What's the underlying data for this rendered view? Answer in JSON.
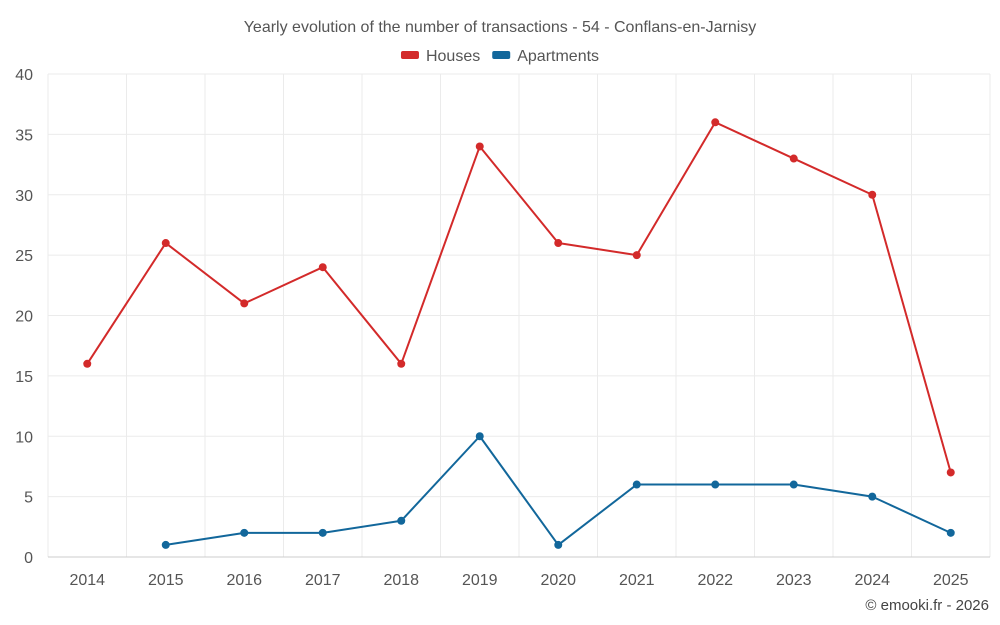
{
  "chart_data": {
    "type": "line",
    "title": "Yearly evolution of the number of transactions - 54 - Conflans-en-Jarnisy",
    "categories": [
      "2014",
      "2015",
      "2016",
      "2017",
      "2018",
      "2019",
      "2020",
      "2021",
      "2022",
      "2023",
      "2024",
      "2025"
    ],
    "series": [
      {
        "name": "Houses",
        "color": "#d32a2a",
        "values": [
          16,
          26,
          21,
          24,
          16,
          34,
          26,
          25,
          36,
          33,
          30,
          7
        ]
      },
      {
        "name": "Apartments",
        "color": "#12679b",
        "values": [
          null,
          1,
          2,
          2,
          3,
          10,
          1,
          6,
          6,
          6,
          5,
          2
        ]
      }
    ],
    "ylim": [
      0,
      40
    ],
    "yticks": [
      0,
      5,
      10,
      15,
      20,
      25,
      30,
      35,
      40
    ],
    "xlabel": "",
    "ylabel": "",
    "grid": true,
    "legend_position": "top-center"
  },
  "credit": "© emooki.fr - 2026"
}
